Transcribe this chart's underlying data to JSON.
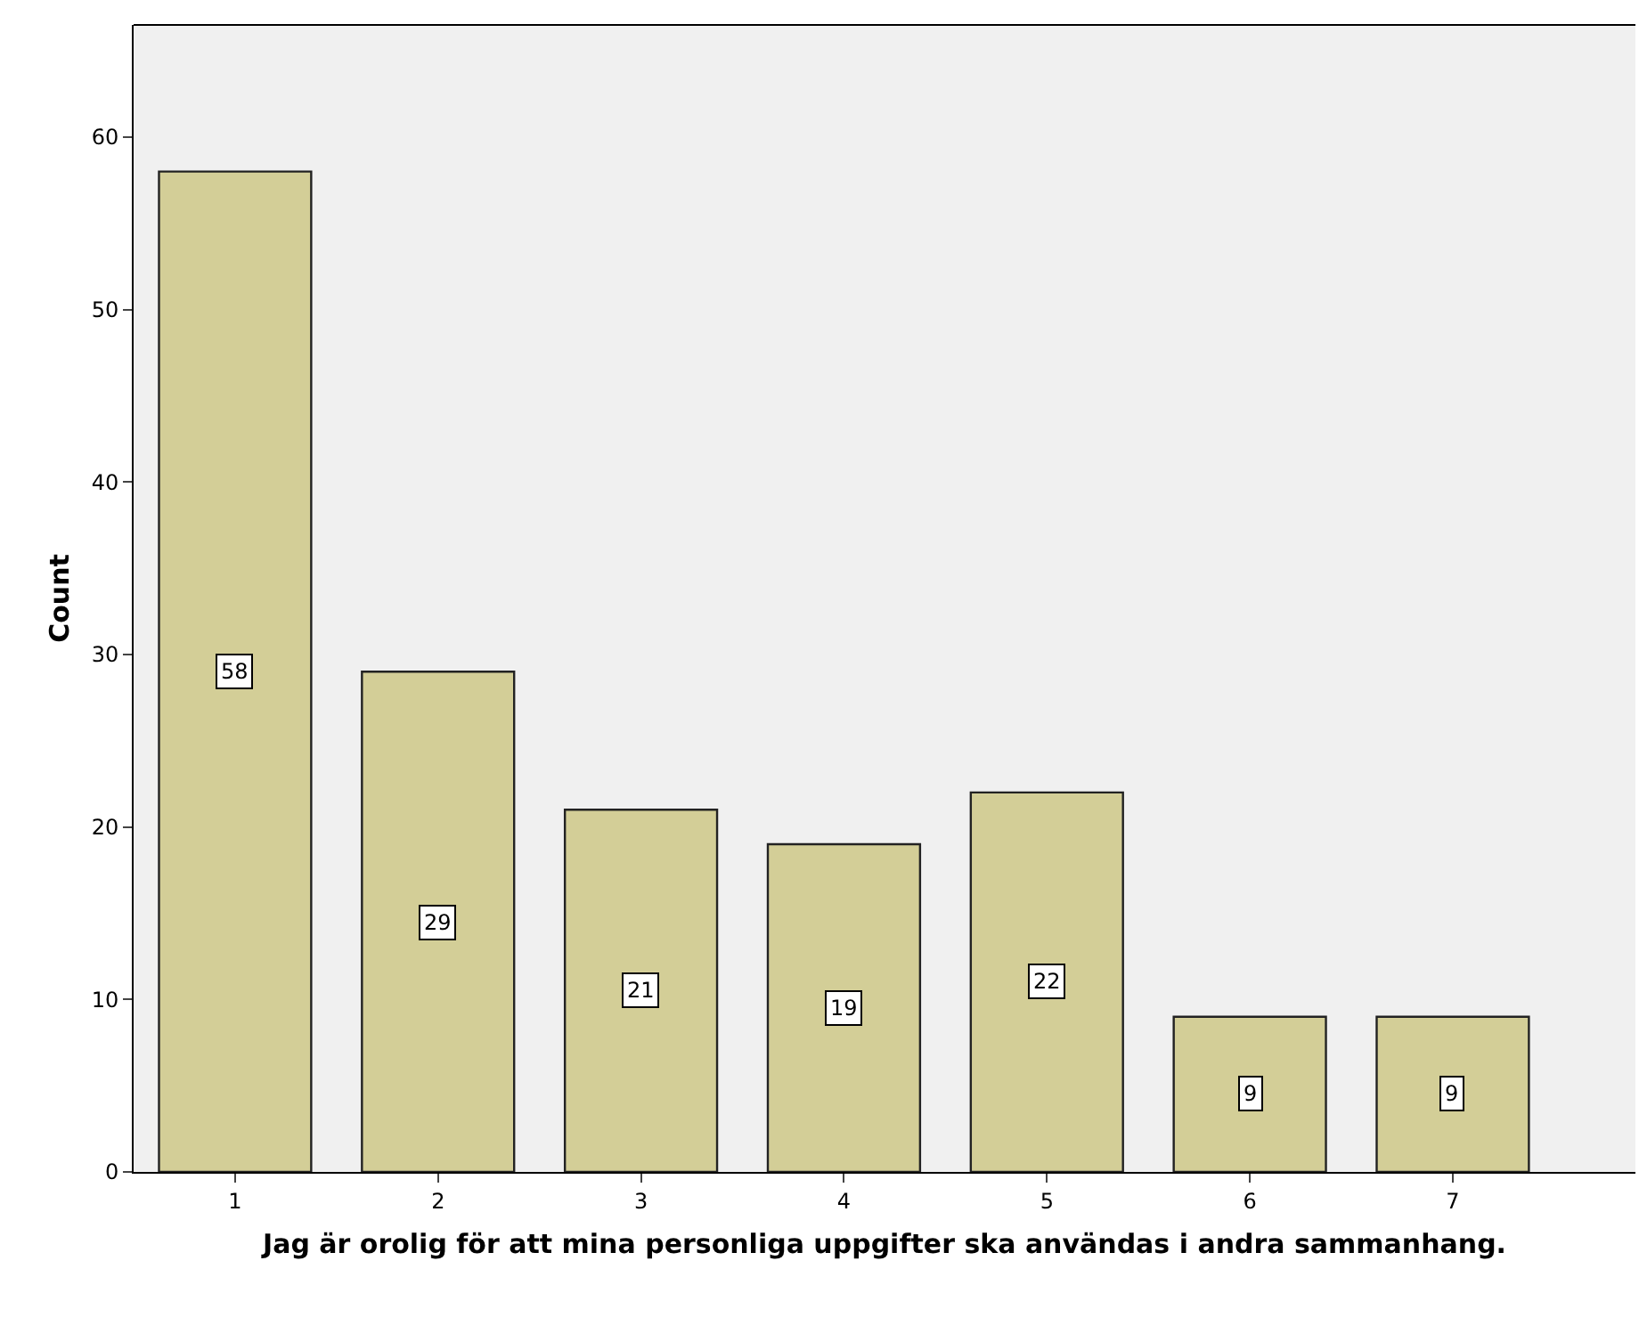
{
  "chart_data": {
    "type": "bar",
    "xlabel": "Jag är orolig för att mina personliga uppgifter ska användas i andra sammanhang.",
    "ylabel": "Count",
    "categories": [
      "1",
      "2",
      "3",
      "4",
      "5",
      "6",
      "7"
    ],
    "values": [
      58,
      29,
      21,
      19,
      22,
      9,
      9
    ],
    "color": "#d3ce97",
    "ylim": [
      0,
      66.5
    ],
    "yticks": [
      0,
      10,
      20,
      30,
      40,
      50,
      60
    ],
    "data_labels": true,
    "grid": false,
    "legend": false
  }
}
